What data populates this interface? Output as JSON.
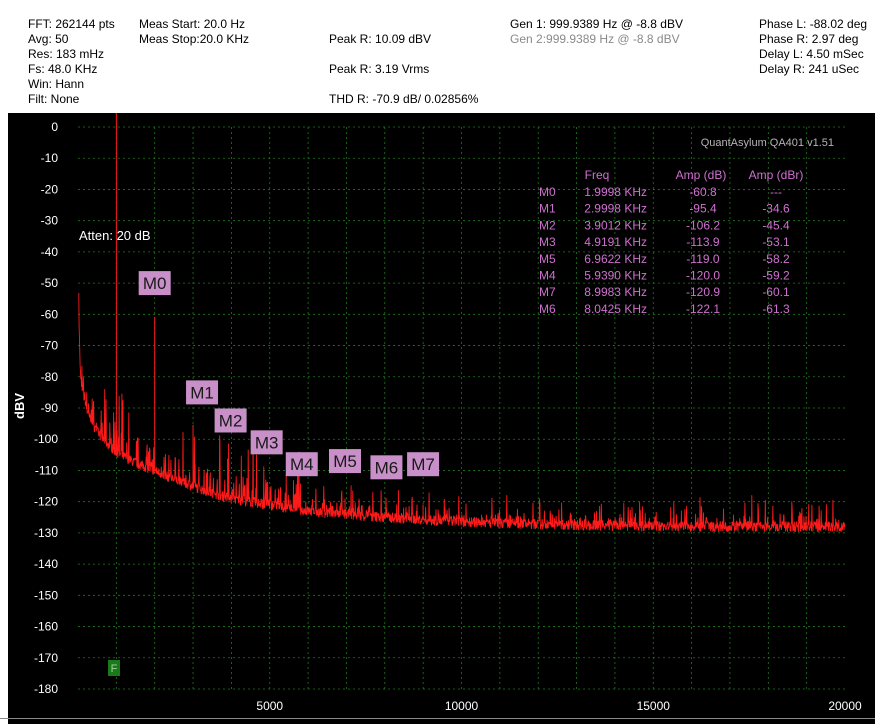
{
  "header": {
    "fft": "FFT: 262144 pts",
    "avg": "Avg: 50",
    "res": "Res: 183 mHz",
    "fs": "Fs: 48.0 KHz",
    "win": "Win: Hann",
    "filt": "Filt: None",
    "meas_start": "Meas Start: 20.0 Hz",
    "meas_stop": "Meas Stop:20.0 KHz",
    "peak_r_dbv": "Peak R: 10.09 dBV",
    "peak_r_vrms": "Peak R: 3.19 Vrms",
    "thd_r": "THD R: -70.9 dB/ 0.02856%",
    "gen1": "Gen 1: 999.9389 Hz @ -8.8  dBV",
    "gen2": "Gen 2:999.9389 Hz @ -8.8  dBV",
    "phase_l": "Phase L: -88.02 deg",
    "phase_r": "Phase R: 2.97 deg",
    "delay_l": "Delay L: 4.50 mSec",
    "delay_r": "Delay R: 241 uSec"
  },
  "chart": {
    "version": "QuantAsylum QA401 v1.51",
    "atten": "Atten: 20 dB",
    "f_marker": "F",
    "table_headers": [
      "Freq",
      "Amp (dB)",
      "Amp (dBr)"
    ],
    "colors": {
      "background": "#000000",
      "grid": "#1e7a1e",
      "trace": "#ff1a1a",
      "axis_text": "#ffffff",
      "marker_box": "#c88fc8",
      "table_text": "#d070d0",
      "f_box": "#1a7a1a"
    }
  },
  "chart_data": {
    "type": "line",
    "title": "",
    "xlabel": "",
    "ylabel": "dBV",
    "xlim": [
      0,
      20000
    ],
    "ylim": [
      -180,
      0
    ],
    "x_ticks": [
      5000,
      10000,
      15000,
      20000
    ],
    "y_ticks": [
      0,
      -10,
      -20,
      -30,
      -40,
      -50,
      -60,
      -70,
      -80,
      -90,
      -100,
      -110,
      -120,
      -130,
      -140,
      -150,
      -160,
      -170,
      -180
    ],
    "grid": true,
    "legend": "none",
    "series": [
      {
        "color": "#ff1a1a",
        "noise_floor": [
          {
            "x": 20,
            "y": -55
          },
          {
            "x": 60,
            "y": -78
          },
          {
            "x": 150,
            "y": -86
          },
          {
            "x": 300,
            "y": -93
          },
          {
            "x": 600,
            "y": -99
          },
          {
            "x": 1000,
            "y": -104
          },
          {
            "x": 2000,
            "y": -110
          },
          {
            "x": 3000,
            "y": -115
          },
          {
            "x": 4000,
            "y": -119
          },
          {
            "x": 5000,
            "y": -121
          },
          {
            "x": 6000,
            "y": -123
          },
          {
            "x": 8000,
            "y": -125
          },
          {
            "x": 10000,
            "y": -126.5
          },
          {
            "x": 13000,
            "y": -127.5
          },
          {
            "x": 16000,
            "y": -128
          },
          {
            "x": 20000,
            "y": -128
          }
        ],
        "peaks": [
          {
            "x": 999.94,
            "y": 10.09
          },
          {
            "x": 1999.8,
            "y": -60.8
          },
          {
            "x": 2999.8,
            "y": -95.4
          },
          {
            "x": 3901.2,
            "y": -106.2
          },
          {
            "x": 4919.1,
            "y": -113.9
          },
          {
            "x": 5939.0,
            "y": -120.0
          },
          {
            "x": 6962.2,
            "y": -119.0
          },
          {
            "x": 8042.5,
            "y": -122.1
          },
          {
            "x": 8998.3,
            "y": -120.9
          }
        ]
      }
    ],
    "markers": [
      {
        "label": "M0",
        "freq": "1.9998 KHz",
        "amp_db": "-60.8",
        "amp_dbr": "---"
      },
      {
        "label": "M1",
        "freq": "2.9998 KHz",
        "amp_db": "-95.4",
        "amp_dbr": "-34.6"
      },
      {
        "label": "M2",
        "freq": "3.9012 KHz",
        "amp_db": "-106.2",
        "amp_dbr": "-45.4"
      },
      {
        "label": "M3",
        "freq": "4.9191 KHz",
        "amp_db": "-113.9",
        "amp_dbr": "-53.1"
      },
      {
        "label": "M5",
        "freq": "6.9622 KHz",
        "amp_db": "-119.0",
        "amp_dbr": "-58.2"
      },
      {
        "label": "M4",
        "freq": "5.9390 KHz",
        "amp_db": "-120.0",
        "amp_dbr": "-59.2"
      },
      {
        "label": "M7",
        "freq": "8.9983 KHz",
        "amp_db": "-120.9",
        "amp_dbr": "-60.1"
      },
      {
        "label": "M6",
        "freq": "8.0425 KHz",
        "amp_db": "-122.1",
        "amp_dbr": "-61.3"
      }
    ]
  }
}
